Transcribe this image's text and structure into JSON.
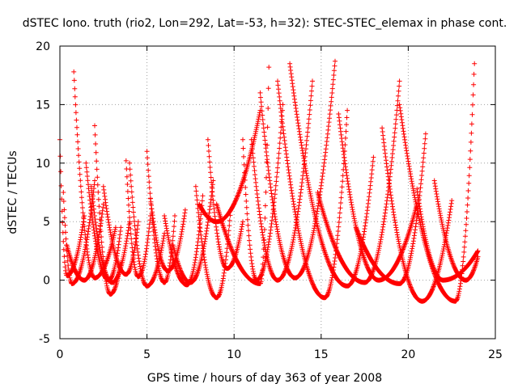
{
  "chart_data": {
    "type": "scatter",
    "title": "dSTEC Iono. truth (rio2, Lon=292, Lat=-53, h=32): STEC-STEC_elemax in phase cont.",
    "xlabel": "GPS time / hours of day 363 of year 2008",
    "ylabel": "dSTEC  / TECUs",
    "xlim": [
      0,
      25
    ],
    "ylim": [
      -5,
      20
    ],
    "xticks": [
      0,
      5,
      10,
      15,
      20,
      25
    ],
    "yticks": [
      -5,
      0,
      5,
      10,
      15,
      20
    ],
    "grid": true,
    "marker": "+",
    "colors": {
      "series": "#ff0000",
      "axes": "#000000",
      "grid": "#a0a0a0"
    },
    "series": [
      {
        "arcs": [
          {
            "start": 0.0,
            "end": 1.4,
            "tmin": 0.4,
            "vstart": 12.0,
            "vmin": 0.4,
            "vend": 5.5
          },
          {
            "start": 0.2,
            "end": 2.0,
            "tmin": 0.7,
            "vstart": 7.5,
            "vmin": -0.3,
            "vend": 8.5
          },
          {
            "start": 0.4,
            "end": 2.5,
            "tmin": 1.4,
            "vstart": 3.0,
            "vmin": 0.0,
            "vend": 6.5
          },
          {
            "start": 0.8,
            "end": 3.2,
            "tmin": 2.0,
            "vstart": 17.8,
            "vmin": 0.2,
            "vend": 4.5
          },
          {
            "start": 1.5,
            "end": 3.5,
            "tmin": 2.8,
            "vstart": 10.0,
            "vmin": 0.0,
            "vend": 4.5
          },
          {
            "start": 1.8,
            "end": 4.0,
            "tmin": 3.0,
            "vstart": 8.0,
            "vmin": -0.2,
            "vend": 5.0
          },
          {
            "start": 2.0,
            "end": 3.5,
            "tmin": 2.9,
            "vstart": 13.2,
            "vmin": -1.2,
            "vend": 1.5
          },
          {
            "start": 2.5,
            "end": 4.5,
            "tmin": 3.8,
            "vstart": 8.0,
            "vmin": 0.5,
            "vend": 5.0
          },
          {
            "start": 3.8,
            "end": 5.2,
            "tmin": 4.5,
            "vstart": 10.2,
            "vmin": 0.3,
            "vend": 5.5
          },
          {
            "start": 4.0,
            "end": 6.0,
            "tmin": 5.0,
            "vstart": 10.0,
            "vmin": -0.5,
            "vend": 4.0
          },
          {
            "start": 5.0,
            "end": 6.6,
            "tmin": 6.0,
            "vstart": 11.0,
            "vmin": -0.2,
            "vend": 5.5
          },
          {
            "start": 5.2,
            "end": 7.2,
            "tmin": 6.2,
            "vstart": 7.0,
            "vmin": 0.8,
            "vend": 6.0
          },
          {
            "start": 6.0,
            "end": 8.2,
            "tmin": 7.3,
            "vstart": 5.5,
            "vmin": -0.4,
            "vend": 7.2
          },
          {
            "start": 6.5,
            "end": 8.8,
            "tmin": 7.5,
            "vstart": 3.0,
            "vmin": -0.2,
            "vend": 8.5
          },
          {
            "start": 7.8,
            "end": 9.8,
            "tmin": 9.0,
            "vstart": 8.0,
            "vmin": -1.5,
            "vend": 6.0
          },
          {
            "start": 8.5,
            "end": 10.5,
            "tmin": 9.6,
            "vstart": 12.0,
            "vmin": 1.0,
            "vend": 5.0
          },
          {
            "start": 8.0,
            "end": 11.5,
            "tmin": 9.0,
            "vstart": 6.5,
            "vmin": 5.0,
            "vend": 14.5
          },
          {
            "start": 9.0,
            "end": 12.0,
            "tmin": 11.5,
            "vstart": 6.5,
            "vmin": -0.3,
            "vend": 18.2
          },
          {
            "start": 10.5,
            "end": 12.8,
            "tmin": 11.3,
            "vstart": 12.0,
            "vmin": 0.0,
            "vend": 15.0
          },
          {
            "start": 11.0,
            "end": 14.5,
            "tmin": 12.5,
            "vstart": 12.0,
            "vmin": 0.0,
            "vend": 17.0
          },
          {
            "start": 11.5,
            "end": 15.8,
            "tmin": 13.5,
            "vstart": 16.0,
            "vmin": 0.2,
            "vend": 18.7
          },
          {
            "start": 12.5,
            "end": 16.5,
            "tmin": 15.2,
            "vstart": 17.0,
            "vmin": -1.5,
            "vend": 14.5
          },
          {
            "start": 13.2,
            "end": 18.0,
            "tmin": 16.5,
            "vstart": 18.5,
            "vmin": -0.5,
            "vend": 10.5
          },
          {
            "start": 14.8,
            "end": 19.5,
            "tmin": 17.5,
            "vstart": 7.5,
            "vmin": -0.2,
            "vend": 17.0
          },
          {
            "start": 16.0,
            "end": 20.5,
            "tmin": 18.3,
            "vstart": 14.2,
            "vmin": 0.0,
            "vend": 6.5
          },
          {
            "start": 17.0,
            "end": 21.0,
            "tmin": 19.5,
            "vstart": 4.5,
            "vmin": -0.3,
            "vend": 12.5
          },
          {
            "start": 18.5,
            "end": 22.5,
            "tmin": 20.8,
            "vstart": 13.0,
            "vmin": -1.8,
            "vend": 6.8
          },
          {
            "start": 19.5,
            "end": 23.8,
            "tmin": 22.7,
            "vstart": 15.0,
            "vmin": -1.8,
            "vend": 18.5
          },
          {
            "start": 20.5,
            "end": 24.0,
            "tmin": 22.0,
            "vstart": 7.8,
            "vmin": 0.0,
            "vend": 2.5
          },
          {
            "start": 21.5,
            "end": 24.0,
            "tmin": 23.3,
            "vstart": 8.5,
            "vmin": 0.0,
            "vend": 2.0
          }
        ]
      }
    ]
  }
}
